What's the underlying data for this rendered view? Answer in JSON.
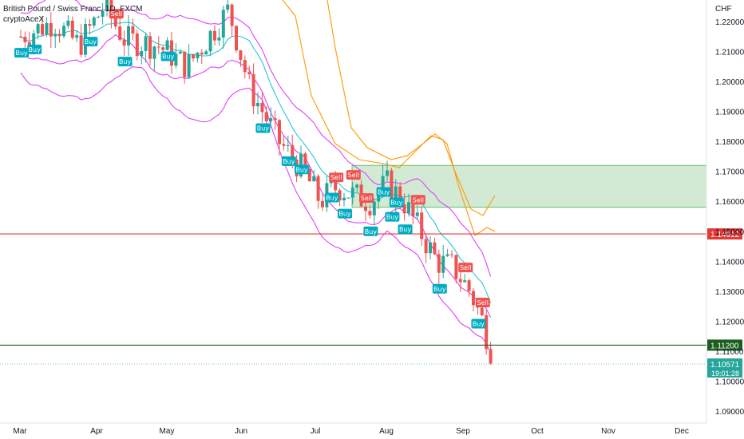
{
  "header": {
    "title": "British Pound / Swiss Franc, 1D, FXCM",
    "author": "cryptoAceX"
  },
  "axis": {
    "currency": "CHF"
  },
  "colors": {
    "up": "#26a69a",
    "down": "#ef5350",
    "buy_bg": "#00acc1",
    "sell_bg": "#ef5350",
    "midline": "#26c6da",
    "channel": "#e040fb",
    "orange": "#ff9800",
    "zone_fill": "#a5d6a7",
    "zone_stroke": "#4caf50",
    "red_line": "#e53935",
    "green_line": "#1b5e20"
  },
  "chart_data": {
    "type": "candlestick",
    "ylim": [
      1.085,
      1.228
    ],
    "y_ticks": [
      "1.09000",
      "1.10000",
      "1.11000",
      "1.12000",
      "1.13000",
      "1.14000",
      "1.15000",
      "1.16000",
      "1.17000",
      "1.18000",
      "1.19000",
      "1.20000",
      "1.21000",
      "1.22000"
    ],
    "x_labels": [
      "Mar",
      "Apr",
      "May",
      "Jun",
      "Jul",
      "Aug",
      "Sep",
      "Oct",
      "Nov",
      "Dec"
    ],
    "horizontal_lines": [
      {
        "name": "resistance",
        "value": 1.14912,
        "label": "1.14912"
      },
      {
        "name": "support",
        "value": 1.112,
        "label": "1.11200"
      }
    ],
    "current_price": {
      "value": 1.10571,
      "label": "1.10571",
      "countdown": "19:01:28"
    },
    "zone": {
      "top": 1.172,
      "bottom": 1.158
    },
    "signals": [
      {
        "type": "Buy",
        "bar": 0
      },
      {
        "type": "Buy",
        "bar": 3
      },
      {
        "type": "Buy",
        "bar": 16
      },
      {
        "type": "Buy",
        "bar": 24
      },
      {
        "type": "Sell",
        "bar": 22
      },
      {
        "type": "Buy",
        "bar": 34
      },
      {
        "type": "Buy",
        "bar": 56
      },
      {
        "type": "Buy",
        "bar": 62
      },
      {
        "type": "Buy",
        "bar": 65
      },
      {
        "type": "Sell",
        "bar": 73
      },
      {
        "type": "Buy",
        "bar": 72
      },
      {
        "type": "Buy",
        "bar": 75
      },
      {
        "type": "Sell",
        "bar": 77
      },
      {
        "type": "Sell",
        "bar": 80
      },
      {
        "type": "Buy",
        "bar": 81
      },
      {
        "type": "Buy",
        "bar": 84
      },
      {
        "type": "Buy",
        "bar": 86
      },
      {
        "type": "Buy",
        "bar": 87
      },
      {
        "type": "Buy",
        "bar": 89
      },
      {
        "type": "Sell",
        "bar": 92
      },
      {
        "type": "Buy",
        "bar": 97
      },
      {
        "type": "Sell",
        "bar": 103
      },
      {
        "type": "Sell",
        "bar": 107
      },
      {
        "type": "Buy",
        "bar": 106
      }
    ]
  }
}
